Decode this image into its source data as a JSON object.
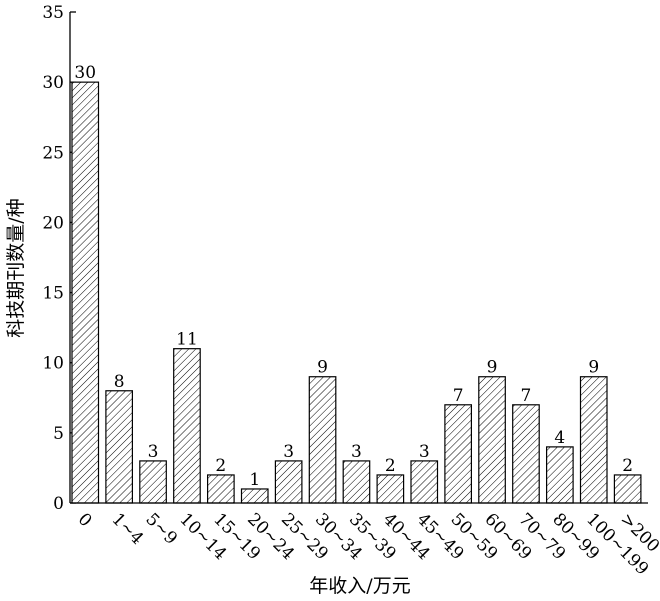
{
  "chart_data": {
    "type": "bar",
    "categories": [
      "0",
      "1~4",
      "5~9",
      "10~14",
      "15~19",
      "20~24",
      "25~29",
      "30~34",
      "35~39",
      "40~44",
      "45~49",
      "50~59",
      "60~69",
      "70~79",
      "80~99",
      "100~199",
      ">200"
    ],
    "values": [
      30,
      8,
      3,
      11,
      2,
      1,
      3,
      9,
      3,
      2,
      3,
      7,
      9,
      7,
      4,
      9,
      2
    ],
    "xlabel": "年收入/万元",
    "ylabel": "科技期刊数量/种",
    "ylim": [
      0,
      35
    ],
    "yticks": [
      0,
      5,
      10,
      15,
      20,
      25,
      30,
      35
    ],
    "grid": false,
    "bar_fill": "diagonal-hatch",
    "colors": {
      "bar_stroke": "#000000",
      "hatch": "#000000",
      "background": "#ffffff"
    }
  }
}
